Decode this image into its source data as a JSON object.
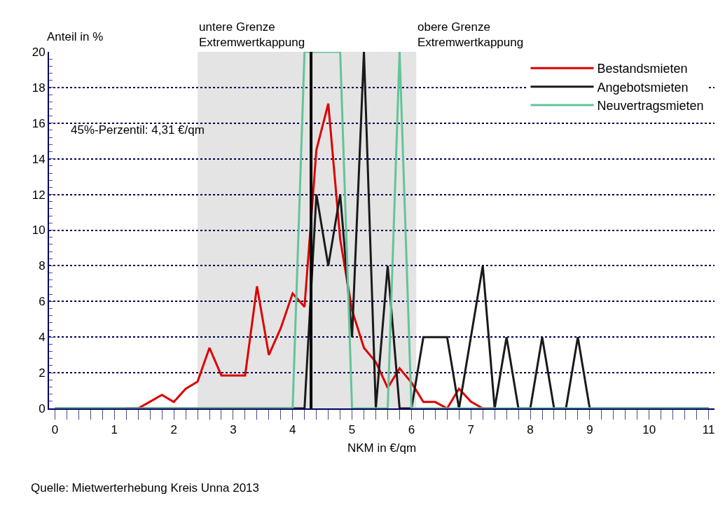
{
  "chart_data": {
    "type": "line",
    "xlabel": "NKM in €/qm",
    "ylabel": "Anteil in %",
    "x": [
      0,
      0.2,
      0.4,
      0.6,
      0.8,
      1,
      1.2,
      1.4,
      1.6,
      1.8,
      2,
      2.2,
      2.4,
      2.6,
      2.8,
      3,
      3.2,
      3.4,
      3.6,
      3.8,
      4,
      4.2,
      4.4,
      4.6,
      4.8,
      5,
      5.2,
      5.4,
      5.6,
      5.8,
      6,
      6.2,
      6.4,
      6.6,
      6.8,
      7,
      7.2,
      7.4,
      7.6,
      7.8,
      8,
      8.2,
      8.4,
      8.6,
      8.8,
      9,
      9.2,
      9.4,
      9.6,
      9.8,
      10,
      10.2,
      10.4,
      10.6,
      10.8,
      11
    ],
    "series": [
      {
        "name": "Bestandsmieten",
        "color": "#dd0000",
        "values": [
          null,
          null,
          null,
          null,
          null,
          null,
          0,
          0,
          0.38,
          0.76,
          0.36,
          1.1,
          1.5,
          3.4,
          1.85,
          1.85,
          1.85,
          6.85,
          3,
          4.5,
          6.45,
          5.7,
          14.5,
          17.1,
          9.5,
          5.5,
          3.4,
          2.6,
          1.15,
          2.25,
          1.45,
          0.36,
          0.36,
          0,
          1.1,
          0.38,
          0,
          0,
          null,
          null,
          null,
          null,
          null,
          null,
          null,
          null,
          null,
          null,
          null,
          null,
          null,
          null,
          null,
          null,
          null,
          null
        ]
      },
      {
        "name": "Angebotsmieten",
        "color": "#1a1a1a",
        "values": [
          0,
          0,
          0,
          0,
          0,
          0,
          0,
          0,
          0,
          0,
          0,
          0,
          0,
          0,
          0,
          0,
          0,
          0,
          0,
          0,
          0,
          0,
          12,
          8,
          12,
          4,
          20,
          0,
          8,
          0,
          0,
          4,
          4,
          4,
          0,
          4,
          8,
          0,
          4,
          0,
          0,
          4,
          0,
          0,
          4,
          0,
          0,
          0,
          0,
          0,
          0,
          0,
          0,
          0,
          0,
          0
        ]
      },
      {
        "name": "Neuvertragsmieten",
        "color": "#66c299",
        "values": [
          0,
          0,
          0,
          0,
          0,
          0,
          0,
          0,
          0,
          0,
          0,
          0,
          0,
          0,
          0,
          0,
          0,
          0,
          0,
          0,
          0,
          20,
          20,
          20,
          20,
          0,
          0,
          0,
          0,
          20,
          0,
          0,
          0,
          0,
          0,
          0,
          0,
          0,
          0,
          0,
          0,
          0,
          0,
          0,
          0,
          0,
          0,
          0,
          0,
          0,
          0,
          0,
          0,
          0,
          0,
          0
        ]
      }
    ],
    "xlim": [
      -0.1,
      11.1
    ],
    "xticks": [
      0,
      1,
      2,
      3,
      4,
      5,
      6,
      7,
      8,
      9,
      10,
      11
    ],
    "ylim": [
      0,
      20
    ],
    "yticks": [
      0,
      2,
      4,
      6,
      8,
      10,
      12,
      14,
      16,
      18,
      20
    ],
    "grid": "y",
    "legend": "top right",
    "marker": "none",
    "line_style": "solid",
    "ref_lines": [
      {
        "axis": "x",
        "value": 4.31,
        "color": "#000000"
      }
    ],
    "bands": [
      {
        "axis": "x",
        "from": 2.4,
        "to": 6.08,
        "color": "#e4e4e4"
      }
    ],
    "annotations": [
      {
        "text": "untere Grenze\nExtremwertkappung",
        "x": 2.4,
        "y": 20
      },
      {
        "text": "obere Grenze\nExtremwertkappung",
        "x": 6.08,
        "y": 20
      },
      "45%-Perzentil: 4,31 €/qm",
      "Quelle: Mietwerterhebung Kreis Unna 2013"
    ]
  }
}
